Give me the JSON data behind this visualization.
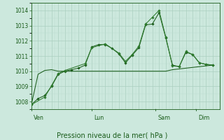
{
  "bg_color": "#cce8dd",
  "grid_color_major": "#aacfbf",
  "grid_color_minor": "#bbddd0",
  "line_color_dark": "#1a5c1a",
  "line_color_med": "#2d7a2d",
  "title": "Pression niveau de la mer( hPa )",
  "ylim": [
    1007.5,
    1014.5
  ],
  "yticks": [
    1008,
    1009,
    1010,
    1011,
    1012,
    1013,
    1014
  ],
  "day_labels": [
    "| Ven",
    "| Lun",
    "| Sam",
    "| Dim"
  ],
  "xlim": [
    0,
    28
  ],
  "series_flat": [
    [
      0,
      1007.8
    ],
    [
      1,
      1009.8
    ],
    [
      2,
      1010.05
    ],
    [
      3,
      1010.1
    ],
    [
      4,
      1010.0
    ],
    [
      5,
      1010.0
    ],
    [
      6,
      1010.0
    ],
    [
      7,
      1010.0
    ],
    [
      8,
      1010.0
    ],
    [
      9,
      1010.0
    ],
    [
      10,
      1010.0
    ],
    [
      11,
      1010.0
    ],
    [
      12,
      1010.0
    ],
    [
      13,
      1010.0
    ],
    [
      14,
      1010.0
    ],
    [
      15,
      1010.0
    ],
    [
      16,
      1010.0
    ],
    [
      17,
      1010.0
    ],
    [
      18,
      1010.0
    ],
    [
      19,
      1010.0
    ],
    [
      20,
      1010.0
    ],
    [
      21,
      1010.1
    ],
    [
      22,
      1010.15
    ],
    [
      23,
      1010.2
    ],
    [
      24,
      1010.25
    ],
    [
      25,
      1010.3
    ],
    [
      26,
      1010.35
    ],
    [
      27,
      1010.4
    ]
  ],
  "series_main": [
    [
      0,
      1007.8
    ],
    [
      1,
      1008.2
    ],
    [
      2,
      1008.4
    ],
    [
      3,
      1009.0
    ],
    [
      4,
      1009.8
    ],
    [
      5,
      1010.0
    ],
    [
      6,
      1010.1
    ],
    [
      7,
      1010.2
    ],
    [
      8,
      1010.4
    ],
    [
      9,
      1011.6
    ],
    [
      10,
      1011.75
    ],
    [
      11,
      1011.75
    ],
    [
      12,
      1011.5
    ],
    [
      13,
      1011.15
    ],
    [
      14,
      1010.55
    ],
    [
      15,
      1011.05
    ],
    [
      16,
      1011.55
    ],
    [
      17,
      1013.05
    ],
    [
      18,
      1013.1
    ],
    [
      19,
      1013.85
    ],
    [
      20,
      1012.2
    ],
    [
      21,
      1010.4
    ],
    [
      22,
      1010.3
    ],
    [
      23,
      1011.25
    ],
    [
      24,
      1011.1
    ],
    [
      25,
      1010.55
    ],
    [
      26,
      1010.45
    ],
    [
      27,
      1010.4
    ]
  ],
  "series_upper": [
    [
      0,
      1007.8
    ],
    [
      2,
      1008.3
    ],
    [
      3,
      1009.05
    ],
    [
      4,
      1009.85
    ],
    [
      5,
      1010.05
    ],
    [
      8,
      1010.5
    ],
    [
      9,
      1011.55
    ],
    [
      11,
      1011.8
    ],
    [
      13,
      1011.2
    ],
    [
      14,
      1010.65
    ],
    [
      15,
      1011.1
    ],
    [
      16,
      1011.65
    ],
    [
      17,
      1013.1
    ],
    [
      18,
      1013.55
    ],
    [
      19,
      1014.0
    ],
    [
      20,
      1012.25
    ],
    [
      21,
      1010.35
    ],
    [
      22,
      1010.3
    ],
    [
      23,
      1011.3
    ],
    [
      24,
      1011.1
    ],
    [
      25,
      1010.55
    ],
    [
      26,
      1010.45
    ],
    [
      27,
      1010.4
    ]
  ]
}
